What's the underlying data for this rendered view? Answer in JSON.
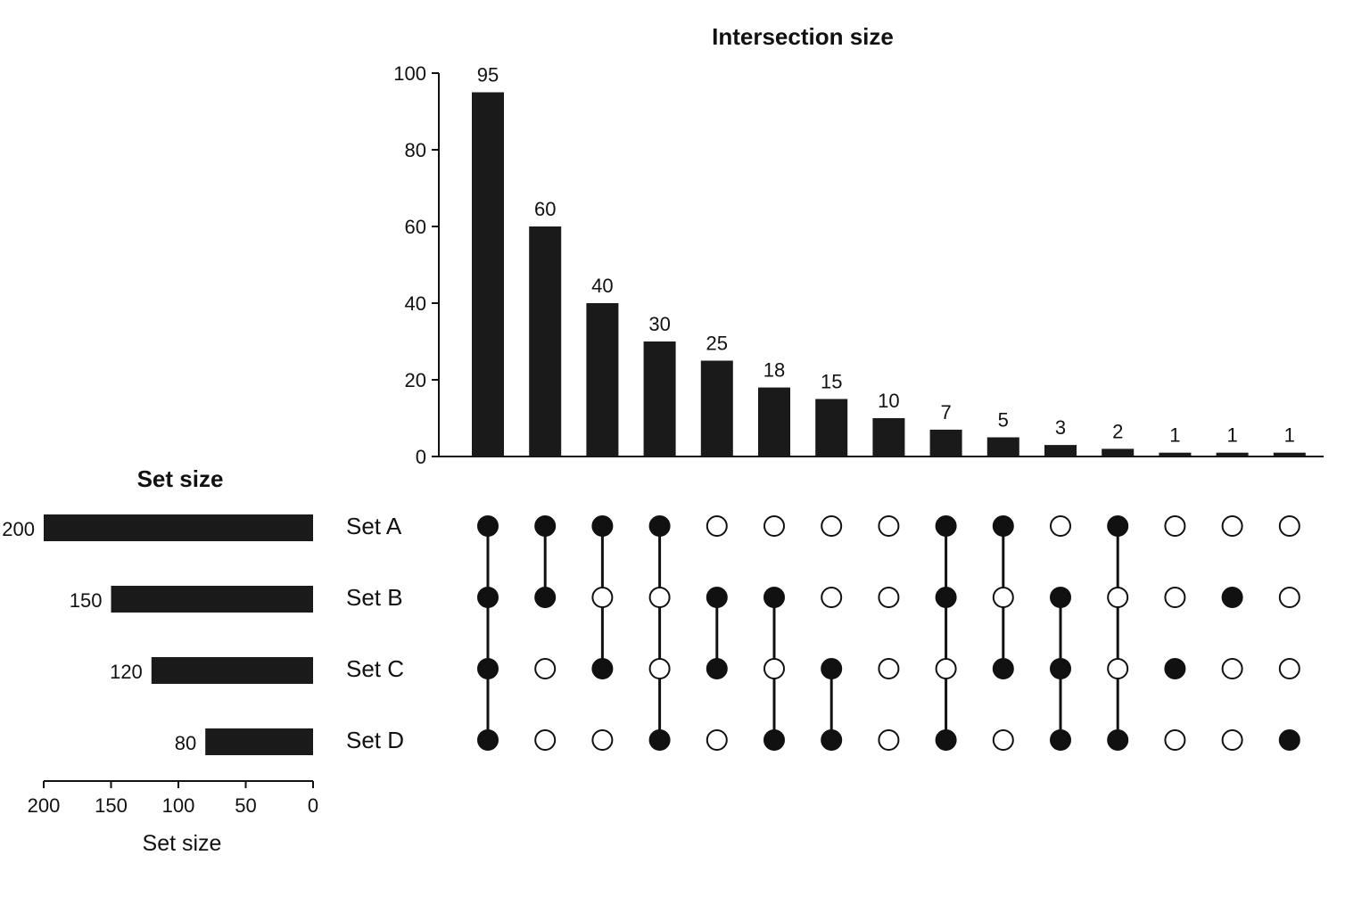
{
  "chart_data": {
    "type": "upset",
    "sets": [
      "Set A",
      "Set B",
      "Set C",
      "Set D"
    ],
    "set_sizes": [
      200,
      150,
      120,
      80
    ],
    "set_size_title": "Set size",
    "set_size_xlabel": "Set size",
    "set_size_ticks": [
      200,
      150,
      100,
      50,
      0
    ],
    "set_size_xlim": [
      200,
      0
    ],
    "intersection_title": "Intersection size",
    "intersection_ylim": [
      0,
      100
    ],
    "intersection_yticks": [
      0,
      20,
      40,
      60,
      80,
      100
    ],
    "intersections": [
      {
        "value": 95,
        "members": [
          1,
          1,
          1,
          1
        ]
      },
      {
        "value": 60,
        "members": [
          1,
          1,
          0,
          0
        ]
      },
      {
        "value": 40,
        "members": [
          1,
          0,
          1,
          0
        ]
      },
      {
        "value": 30,
        "members": [
          1,
          0,
          0,
          1
        ]
      },
      {
        "value": 25,
        "members": [
          0,
          1,
          1,
          0
        ]
      },
      {
        "value": 18,
        "members": [
          0,
          1,
          0,
          1
        ]
      },
      {
        "value": 15,
        "members": [
          0,
          0,
          1,
          1
        ]
      },
      {
        "value": 10,
        "members": [
          0,
          0,
          0,
          0
        ]
      },
      {
        "value": 7,
        "members": [
          1,
          1,
          0,
          1
        ]
      },
      {
        "value": 5,
        "members": [
          1,
          0,
          1,
          0
        ]
      },
      {
        "value": 3,
        "members": [
          0,
          1,
          1,
          1
        ]
      },
      {
        "value": 2,
        "members": [
          1,
          0,
          0,
          1
        ]
      },
      {
        "value": 1,
        "members": [
          0,
          0,
          1,
          0
        ]
      },
      {
        "value": 1,
        "members": [
          0,
          1,
          0,
          0
        ]
      },
      {
        "value": 1,
        "members": [
          0,
          0,
          0,
          1
        ]
      }
    ],
    "colors": {
      "filled": "#111111",
      "empty": "#ffffff",
      "bar": "#1a1a1a"
    }
  }
}
